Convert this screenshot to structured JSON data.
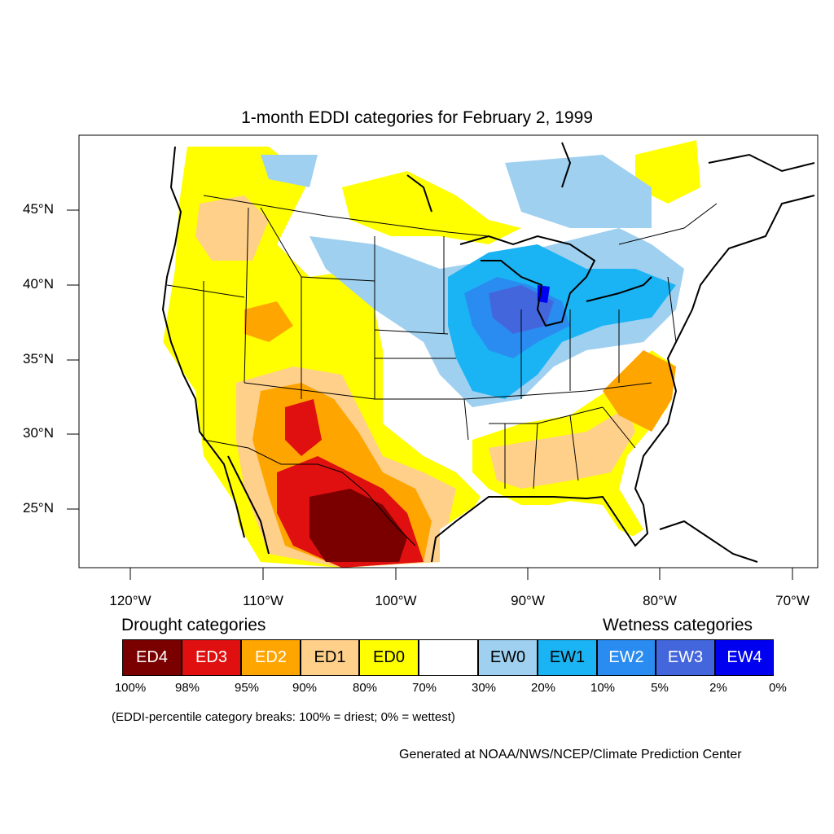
{
  "title": "1-month EDDI categories for February 2, 1999",
  "map": {
    "lat_ticks": [
      "45°N",
      "40°N",
      "35°N",
      "30°N",
      "25°N"
    ],
    "lon_ticks": [
      "120°W",
      "110°W",
      "100°W",
      "90°W",
      "80°W",
      "70°W"
    ],
    "colors": {
      "ED4": "#7a0000",
      "ED3": "#e01010",
      "ED2": "#ffa500",
      "ED1": "#ffd08a",
      "ED0": "#ffff00",
      "neutral": "#ffffff",
      "EW0": "#9fd0f0",
      "EW1": "#1ab4f4",
      "EW2": "#2a8cf0",
      "EW3": "#4466dd",
      "EW4": "#0000f0"
    }
  },
  "legend": {
    "drought_heading": "Drought categories",
    "wetness_heading": "Wetness categories",
    "categories": [
      {
        "label": "ED4",
        "color": "#7a0000",
        "text_color": "#ffffff"
      },
      {
        "label": "ED3",
        "color": "#e01010",
        "text_color": "#ffffff"
      },
      {
        "label": "ED2",
        "color": "#ffa500",
        "text_color": "#ffffff"
      },
      {
        "label": "ED1",
        "color": "#ffd08a",
        "text_color": "#000000"
      },
      {
        "label": "ED0",
        "color": "#ffff00",
        "text_color": "#000000"
      },
      {
        "label": "",
        "color": "#ffffff",
        "text_color": "#000000"
      },
      {
        "label": "EW0",
        "color": "#9fd0f0",
        "text_color": "#000000"
      },
      {
        "label": "EW1",
        "color": "#1ab4f4",
        "text_color": "#000000"
      },
      {
        "label": "EW2",
        "color": "#2a8cf0",
        "text_color": "#ffffff"
      },
      {
        "label": "EW3",
        "color": "#4466dd",
        "text_color": "#ffffff"
      },
      {
        "label": "EW4",
        "color": "#0000f0",
        "text_color": "#ffffff"
      }
    ],
    "breaks": [
      "100%",
      "98%",
      "95%",
      "90%",
      "80%",
      "70%",
      "30%",
      "20%",
      "10%",
      "5%",
      "2%",
      "0%"
    ]
  },
  "note": "(EDDI-percentile category breaks: 100% = driest; 0% = wettest)",
  "credit": "Generated at NOAA/NWS/NCEP/Climate Prediction Center"
}
